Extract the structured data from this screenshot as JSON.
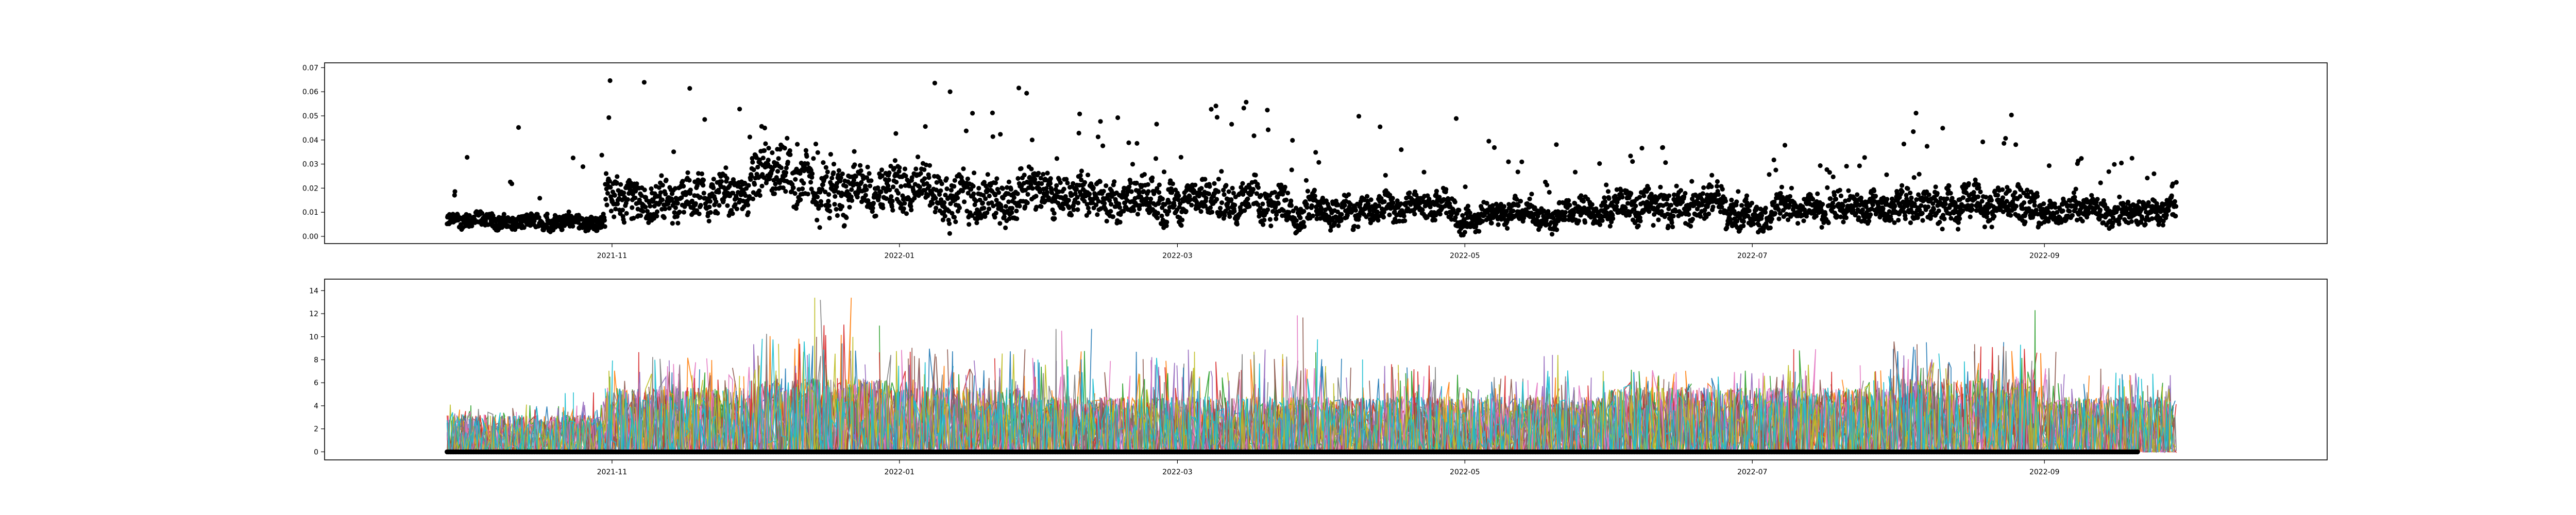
{
  "chart_data": [
    {
      "type": "scatter",
      "title": "",
      "xlabel": "",
      "ylabel": "",
      "x_range": [
        "2021-09-27",
        "2022-09-29"
      ],
      "xlim": [
        "2021-09-01",
        "2022-10-31"
      ],
      "ylim": [
        -0.003,
        0.072
      ],
      "x_ticks": [
        "2021-11",
        "2022-01",
        "2022-03",
        "2022-05",
        "2022-07",
        "2022-09"
      ],
      "y_ticks": [
        "0.00",
        "0.01",
        "0.02",
        "0.03",
        "0.04",
        "0.05",
        "0.06",
        "0.07"
      ],
      "marker_color": "#000000",
      "grid": false,
      "legend": "none",
      "series_summary": [
        {
          "month": "2021-10",
          "typical": 0.006,
          "peak": 0.05
        },
        {
          "month": "2021-11",
          "typical": 0.016,
          "peak": 0.068
        },
        {
          "month": "2021-12",
          "typical": 0.02,
          "peak": 0.049
        },
        {
          "month": "2022-01",
          "typical": 0.018,
          "peak": 0.066
        },
        {
          "month": "2022-02",
          "typical": 0.015,
          "peak": 0.053
        },
        {
          "month": "2022-03",
          "typical": 0.014,
          "peak": 0.057
        },
        {
          "month": "2022-04",
          "typical": 0.011,
          "peak": 0.051
        },
        {
          "month": "2022-05",
          "typical": 0.009,
          "peak": 0.04
        },
        {
          "month": "2022-06",
          "typical": 0.013,
          "peak": 0.039
        },
        {
          "month": "2022-07",
          "typical": 0.011,
          "peak": 0.038
        },
        {
          "month": "2022-08",
          "typical": 0.014,
          "peak": 0.054
        },
        {
          "month": "2022-09",
          "typical": 0.01,
          "peak": 0.035
        }
      ]
    },
    {
      "type": "line",
      "title": "",
      "xlabel": "",
      "ylabel": "",
      "x_range": [
        "2021-09-27",
        "2022-09-29"
      ],
      "xlim": [
        "2021-09-01",
        "2022-10-31"
      ],
      "ylim": [
        -0.7,
        15
      ],
      "x_ticks": [
        "2021-11",
        "2022-01",
        "2022-03",
        "2022-05",
        "2022-07",
        "2022-09"
      ],
      "y_ticks": [
        "0",
        "2",
        "4",
        "6",
        "8",
        "10",
        "12",
        "14"
      ],
      "grid": false,
      "legend": "none",
      "series_colors": [
        "#1f77b4",
        "#ff7f0e",
        "#2ca02c",
        "#d62728",
        "#9467bd",
        "#8c564b",
        "#e377c2",
        "#7f7f7f",
        "#bcbd22",
        "#17becf"
      ],
      "baseline_marker_color": "#000000",
      "series_summary": [
        {
          "month": "2021-10",
          "typical": 2.0,
          "peak": 5.5
        },
        {
          "month": "2021-11",
          "typical": 3.5,
          "peak": 11.2
        },
        {
          "month": "2021-12",
          "typical": 4.0,
          "peak": 14.4
        },
        {
          "month": "2022-01",
          "typical": 3.5,
          "peak": 12.5
        },
        {
          "month": "2022-02",
          "typical": 3.0,
          "peak": 11.5
        },
        {
          "month": "2022-03",
          "typical": 3.0,
          "peak": 12.8
        },
        {
          "month": "2022-04",
          "typical": 3.0,
          "peak": 10.5
        },
        {
          "month": "2022-05",
          "typical": 3.0,
          "peak": 9.0
        },
        {
          "month": "2022-06",
          "typical": 3.5,
          "peak": 9.4
        },
        {
          "month": "2022-07",
          "typical": 3.5,
          "peak": 9.5
        },
        {
          "month": "2022-08",
          "typical": 4.0,
          "peak": 13.2
        },
        {
          "month": "2022-09",
          "typical": 3.0,
          "peak": 9.3
        }
      ]
    }
  ]
}
